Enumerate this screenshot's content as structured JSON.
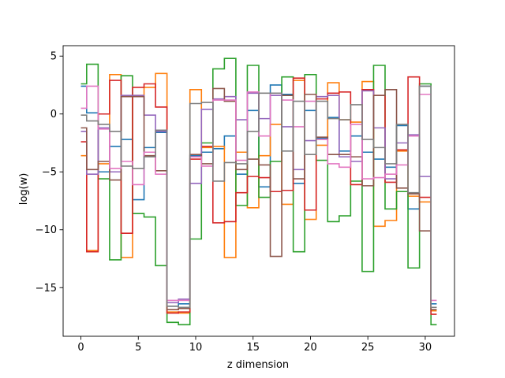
{
  "chart_data": {
    "type": "line",
    "drawstyle": "steps-mid",
    "title": "",
    "xlabel": "z dimension",
    "ylabel": "log(w)",
    "xlim": [
      -1.55,
      32.55
    ],
    "ylim": [
      -19.2,
      5.9
    ],
    "xticks": [
      0,
      5,
      10,
      15,
      20,
      25,
      30
    ],
    "yticks": [
      5,
      0,
      -5,
      -10,
      -15
    ],
    "ytick_labels": [
      "5",
      "0",
      "−5",
      "−10",
      "−15"
    ],
    "grid": false,
    "legend": "none",
    "x": [
      0,
      1,
      2,
      3,
      4,
      5,
      6,
      7,
      8,
      9,
      10,
      11,
      12,
      13,
      14,
      15,
      16,
      17,
      18,
      19,
      20,
      21,
      22,
      23,
      24,
      25,
      26,
      27,
      28,
      29,
      30,
      31
    ],
    "series": [
      {
        "color": "#1f77b4",
        "values": [
          2.4,
          0.1,
          -5.0,
          -2.8,
          -2.2,
          -7.4,
          -2.9,
          -1.6,
          -16.6,
          -16.4,
          -3.6,
          -3.3,
          -3.0,
          -1.9,
          -5.2,
          0.3,
          -6.3,
          2.5,
          1.7,
          -6.0,
          0.3,
          -2.1,
          -0.3,
          -3.2,
          -1.9,
          -3.3,
          -3.9,
          -4.6,
          -1.0,
          -8.2,
          2.4,
          -16.4
        ]
      },
      {
        "color": "#ff7f0e",
        "values": [
          -3.6,
          -11.8,
          -4.3,
          3.4,
          -12.4,
          1.6,
          2.3,
          3.5,
          -17.1,
          -17.2,
          2.1,
          -2.9,
          -2.8,
          -12.4,
          -3.3,
          -8.1,
          -3.6,
          -0.9,
          -7.8,
          2.9,
          -9.1,
          -2.7,
          2.7,
          -0.5,
          -0.7,
          2.8,
          -9.7,
          -9.2,
          -3.2,
          -7.1,
          -7.6,
          -17.0
        ]
      },
      {
        "color": "#2ca02c",
        "values": [
          2.6,
          4.3,
          -5.6,
          -12.6,
          3.3,
          -8.6,
          -8.9,
          -13.1,
          -18.0,
          -18.2,
          -10.8,
          -2.5,
          3.9,
          4.8,
          -7.9,
          4.2,
          -7.2,
          -4.1,
          3.2,
          -11.9,
          3.4,
          -4.0,
          -9.3,
          -8.8,
          -5.8,
          -13.6,
          4.2,
          -8.2,
          -6.7,
          -13.3,
          2.6,
          -18.2
        ]
      },
      {
        "color": "#d62728",
        "values": [
          -2.4,
          -11.9,
          0.0,
          2.9,
          -10.3,
          2.3,
          2.6,
          0.6,
          -17.2,
          -17.1,
          -3.9,
          -2.8,
          -9.4,
          -9.3,
          -6.8,
          -5.4,
          -5.5,
          -6.7,
          -6.6,
          3.1,
          -8.3,
          1.3,
          1.8,
          1.9,
          -6.1,
          2.1,
          1.6,
          -5.9,
          -3.1,
          3.2,
          -7.2,
          -17.3
        ]
      },
      {
        "color": "#9467bd",
        "values": [
          -1.5,
          -5.2,
          -1.2,
          -5.0,
          1.6,
          1.6,
          -0.1,
          -1.5,
          -16.3,
          -16.0,
          -6.0,
          0.4,
          1.3,
          1.5,
          -0.5,
          1.8,
          -0.4,
          1.6,
          -1.1,
          -4.8,
          -2.3,
          1.5,
          1.6,
          -3.7,
          -4.1,
          2.0,
          -1.2,
          -5.6,
          -2.5,
          -1.8,
          -5.4,
          -16.7
        ]
      },
      {
        "color": "#8c564b",
        "values": [
          -1.2,
          -4.8,
          -4.1,
          -5.7,
          1.5,
          1.5,
          -3.6,
          -4.9,
          -16.9,
          -16.8,
          -3.5,
          -4.3,
          2.2,
          1.1,
          -4.8,
          -3.9,
          -4.4,
          -12.3,
          1.6,
          -5.6,
          1.7,
          -2.0,
          -3.5,
          -3.5,
          -3.7,
          -6.2,
          1.6,
          2.1,
          -6.4,
          -6.9,
          -10.1,
          -16.9
        ]
      },
      {
        "color": "#e377c2",
        "values": [
          0.5,
          2.4,
          -1.3,
          -4.7,
          -4.1,
          -6.1,
          -3.3,
          -5.2,
          -16.1,
          -16.1,
          -3.7,
          -4.5,
          1.2,
          1.2,
          -4.0,
          1.9,
          -1.9,
          1.8,
          1.2,
          -1.1,
          1.1,
          -2.2,
          -4.3,
          -4.6,
          -0.9,
          -5.6,
          -5.5,
          -5.2,
          -4.4,
          -1.9,
          1.7,
          -16.1
        ]
      },
      {
        "color": "#7f7f7f",
        "values": [
          -0.1,
          -0.6,
          -0.9,
          -1.5,
          -4.5,
          -4.7,
          -3.7,
          -1.4,
          -16.6,
          -16.7,
          0.9,
          1.0,
          -5.8,
          -4.2,
          -4.3,
          -1.5,
          1.8,
          1.8,
          -3.2,
          1.1,
          -3.5,
          1.1,
          -0.4,
          -0.5,
          0.8,
          -2.2,
          -2.9,
          -4.3,
          -0.9,
          -6.8,
          2.4,
          -16.7
        ]
      }
    ]
  }
}
